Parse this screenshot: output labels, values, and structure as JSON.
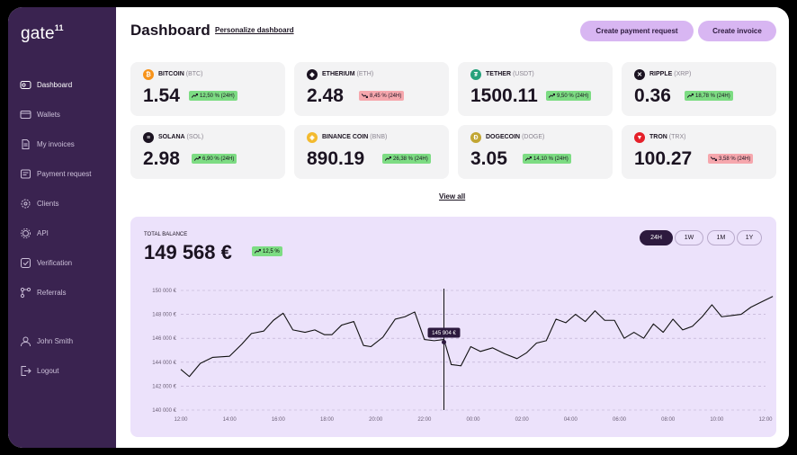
{
  "app": {
    "logo": "gate",
    "logo_sup": "11"
  },
  "sidebar": {
    "items": [
      {
        "label": "Dashboard",
        "icon": "dashboard-icon",
        "active": true
      },
      {
        "label": "Wallets",
        "icon": "wallet-icon"
      },
      {
        "label": "My invoices",
        "icon": "invoice-icon"
      },
      {
        "label": "Payment request",
        "icon": "payment-request-icon"
      },
      {
        "label": "Clients",
        "icon": "clients-icon"
      },
      {
        "label": "API",
        "icon": "api-icon"
      },
      {
        "label": "Verification",
        "icon": "verification-icon"
      },
      {
        "label": "Referrals",
        "icon": "referrals-icon"
      }
    ],
    "user": {
      "label": "John Smith",
      "icon": "user-icon"
    },
    "logout": {
      "label": "Logout",
      "icon": "logout-icon"
    }
  },
  "header": {
    "title": "Dashboard",
    "personalize": "Personalize dashboard",
    "create_payment": "Create payment request",
    "create_invoice": "Create invoice"
  },
  "coins": [
    {
      "name": "BITCOIN",
      "ticker": "(BTC)",
      "value": "1.54",
      "change": "12,50 % (24H)",
      "dir": "up",
      "color": "#f7931a",
      "glyph": "₿"
    },
    {
      "name": "ETHERIUM",
      "ticker": "(ETH)",
      "value": "2.48",
      "change": "8,45 % (24H)",
      "dir": "down",
      "color": "#1b1321",
      "glyph": "◆"
    },
    {
      "name": "TETHER",
      "ticker": "(USDT)",
      "value": "1500.11",
      "change": "9,50 % (24H)",
      "dir": "up",
      "color": "#26a17b",
      "glyph": "₮"
    },
    {
      "name": "RIPPLE",
      "ticker": "(XRP)",
      "value": "0.36",
      "change": "18,78 % (24H)",
      "dir": "up",
      "color": "#1b1321",
      "glyph": "✕"
    },
    {
      "name": "SOLANA",
      "ticker": "(SOL)",
      "value": "2.98",
      "change": "6,90 % (24H)",
      "dir": "up",
      "color": "#1b1321",
      "glyph": "≡"
    },
    {
      "name": "BINANCE COIN",
      "ticker": "(BNB)",
      "value": "890.19",
      "change": "26,38 % (24H)",
      "dir": "up",
      "color": "#f3ba2f",
      "glyph": "◈"
    },
    {
      "name": "DOGECOIN",
      "ticker": "(DOGE)",
      "value": "3.05",
      "change": "14,10 % (24H)",
      "dir": "up",
      "color": "#c2a633",
      "glyph": "Ð"
    },
    {
      "name": "TRON",
      "ticker": "(TRX)",
      "value": "100.27",
      "change": "3,58 % (24H)",
      "dir": "down",
      "color": "#e5202a",
      "glyph": "▼"
    }
  ],
  "view_all": "View all",
  "balance": {
    "label": "TOTAL BALANCE",
    "value": "149 568 €",
    "change": "12,5 %",
    "periods": [
      "24H",
      "1W",
      "1M",
      "1Y"
    ],
    "active_period": "24H"
  },
  "chart_data": {
    "type": "line",
    "yticks": [
      "150 000 €",
      "148 000 €",
      "146 000 €",
      "144 000 €",
      "142 000 €",
      "140 000 €"
    ],
    "xticks": [
      "12:00",
      "14:00",
      "16:00",
      "18:00",
      "20:00",
      "22:00",
      "00:00",
      "02:00",
      "04:00",
      "06:00",
      "08:00",
      "10:00",
      "12:00"
    ],
    "ylim": [
      140000,
      150000
    ],
    "tooltip": {
      "label": "145 904 €",
      "x": 10.8,
      "y": 145904
    },
    "series": [
      {
        "x": [
          0,
          0.35,
          0.8,
          1.3,
          2,
          2.5,
          2.9,
          3.4,
          3.8,
          4.2,
          4.6,
          5.1,
          5.5,
          5.9,
          6.2,
          6.6,
          7.1,
          7.5,
          7.8,
          8.3,
          8.8,
          9.2,
          9.6,
          10,
          10.4,
          10.8,
          11.1,
          11.5,
          11.9,
          12.3,
          12.8,
          13.3,
          13.8,
          14.2,
          14.6,
          15,
          15.4,
          15.8,
          16.2,
          16.6,
          17,
          17.4,
          17.8,
          18.2,
          18.6,
          19,
          19.4,
          19.8,
          20.2,
          20.6,
          21,
          21.4,
          21.8,
          22.2,
          22.6,
          23,
          23.4,
          23.8,
          24.3
        ],
        "y": [
          143400,
          142800,
          143900,
          144400,
          144500,
          145500,
          146400,
          146600,
          147500,
          148100,
          146700,
          146500,
          146700,
          146300,
          146300,
          147100,
          147400,
          145400,
          145300,
          146100,
          147600,
          147800,
          148200,
          145900,
          145800,
          145900,
          143800,
          143700,
          145300,
          144900,
          145200,
          144700,
          144300,
          144800,
          145600,
          145800,
          147600,
          147300,
          148000,
          147400,
          148300,
          147500,
          147500,
          146000,
          146500,
          146000,
          147200,
          146500,
          147600,
          146700,
          147000,
          147800,
          148800,
          147800,
          147900,
          148000,
          148600,
          149000,
          149500
        ]
      }
    ]
  }
}
